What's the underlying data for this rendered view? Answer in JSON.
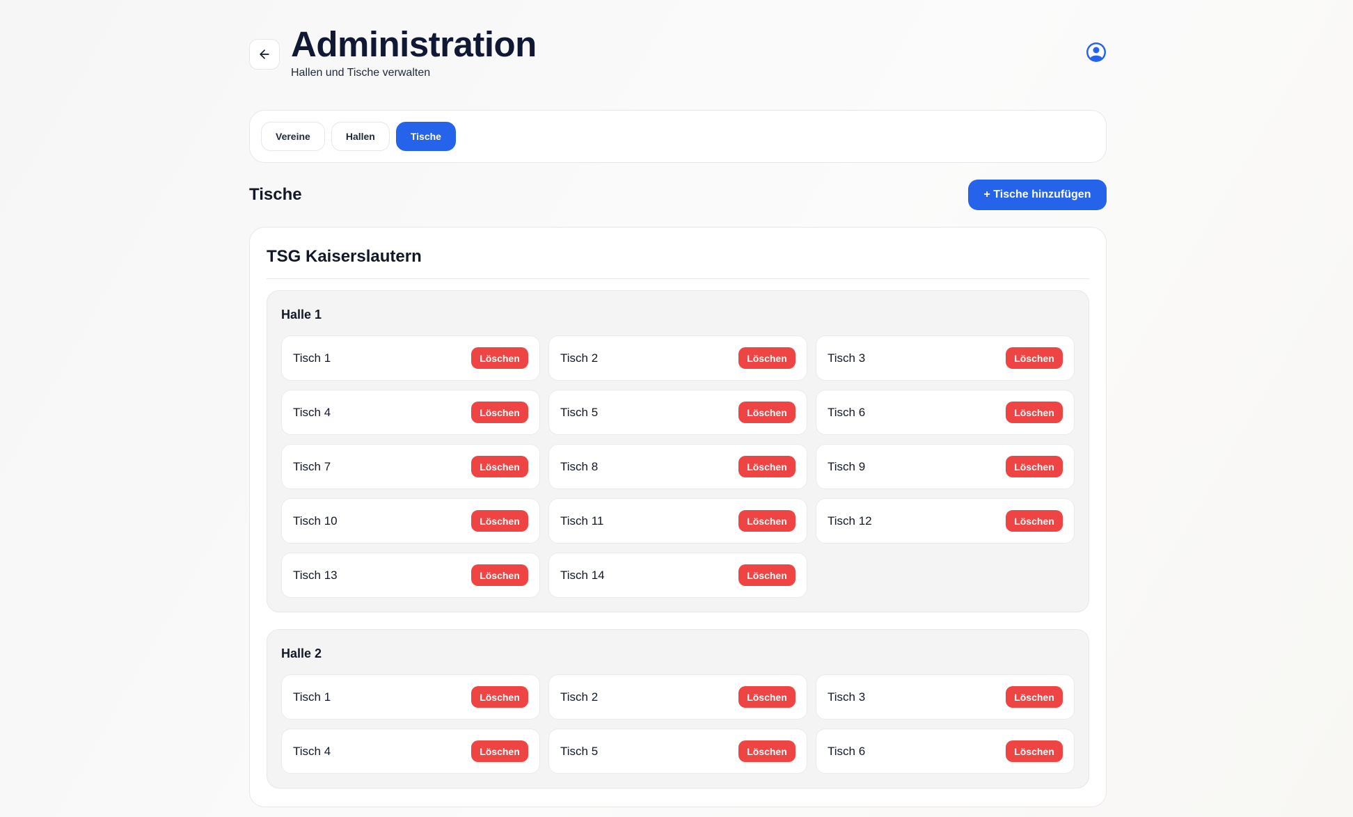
{
  "header": {
    "title": "Administration",
    "subtitle": "Hallen und Tische verwalten"
  },
  "tabs": [
    {
      "label": "Vereine",
      "active": false
    },
    {
      "label": "Hallen",
      "active": false
    },
    {
      "label": "Tische",
      "active": true
    }
  ],
  "section": {
    "title": "Tische",
    "add_button": "+ Tische hinzufügen"
  },
  "club": {
    "name": "TSG Kaiserslautern",
    "halls": [
      {
        "name": "Halle 1",
        "tables": [
          "Tisch 1",
          "Tisch 2",
          "Tisch 3",
          "Tisch 4",
          "Tisch 5",
          "Tisch 6",
          "Tisch 7",
          "Tisch 8",
          "Tisch 9",
          "Tisch 10",
          "Tisch 11",
          "Tisch 12",
          "Tisch 13",
          "Tisch 14"
        ]
      },
      {
        "name": "Halle 2",
        "tables": [
          "Tisch 1",
          "Tisch 2",
          "Tisch 3",
          "Tisch 4",
          "Tisch 5",
          "Tisch 6"
        ]
      }
    ]
  },
  "delete_label": "Löschen",
  "colors": {
    "primary": "#2563eb",
    "danger": "#ef4444"
  }
}
